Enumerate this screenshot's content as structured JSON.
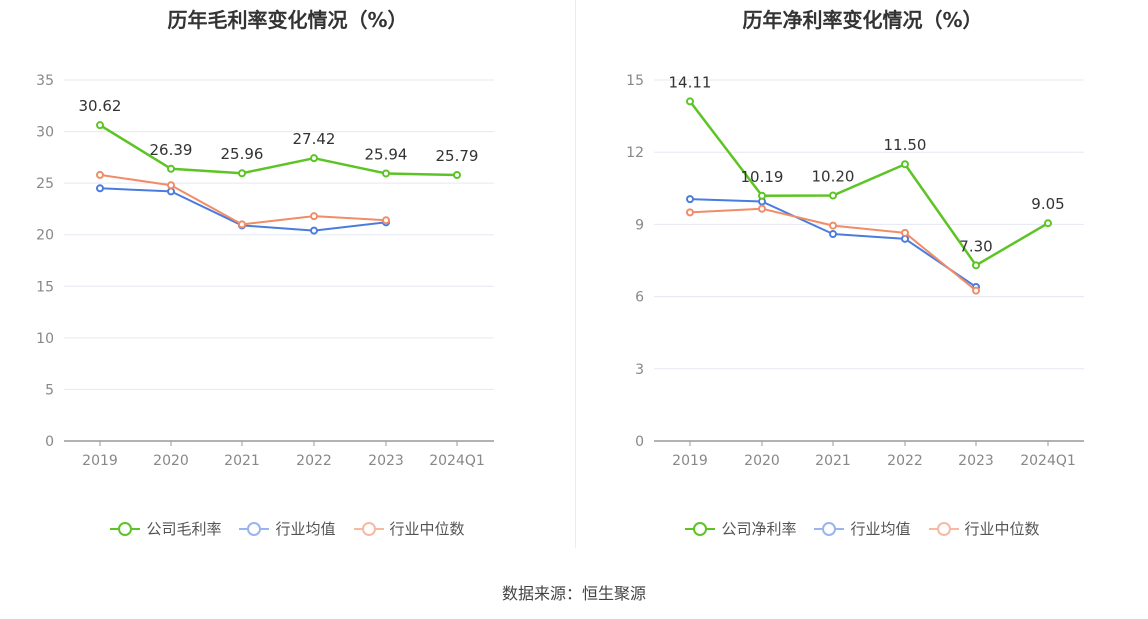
{
  "footer": {
    "source_text": "数据来源：恒生聚源"
  },
  "colors": {
    "company": "#5cc424",
    "avg": "#4a7ce0",
    "median": "#f08c66",
    "grid": "#e6e8f2",
    "axis": "#999999"
  },
  "chart_data": [
    {
      "type": "line",
      "title": "历年毛利率变化情况（%）",
      "categories": [
        "2019",
        "2020",
        "2021",
        "2022",
        "2023",
        "2024Q1"
      ],
      "ylim": [
        0,
        35
      ],
      "yticks": [
        0,
        5,
        10,
        15,
        20,
        25,
        30,
        35
      ],
      "grid": true,
      "legend_position": "bottom",
      "series": [
        {
          "name": "公司毛利率",
          "key": "company",
          "values": [
            30.62,
            26.39,
            25.96,
            27.42,
            25.94,
            25.79
          ],
          "labels": [
            "30.62",
            "26.39",
            "25.96",
            "27.42",
            "25.94",
            "25.79"
          ]
        },
        {
          "name": "行业均值",
          "key": "avg",
          "values": [
            24.5,
            24.2,
            20.9,
            20.4,
            21.2,
            null
          ]
        },
        {
          "name": "行业中位数",
          "key": "median",
          "values": [
            25.8,
            24.8,
            21.0,
            21.8,
            21.4,
            null
          ]
        }
      ]
    },
    {
      "type": "line",
      "title": "历年净利率变化情况（%）",
      "categories": [
        "2019",
        "2020",
        "2021",
        "2022",
        "2023",
        "2024Q1"
      ],
      "ylim": [
        0,
        15
      ],
      "yticks": [
        0,
        3,
        6,
        9,
        12,
        15
      ],
      "grid": true,
      "legend_position": "bottom",
      "series": [
        {
          "name": "公司净利率",
          "key": "company",
          "values": [
            14.11,
            10.19,
            10.2,
            11.5,
            7.3,
            9.05
          ],
          "labels": [
            "14.11",
            "10.19",
            "10.20",
            "11.50",
            "7.30",
            "9.05"
          ]
        },
        {
          "name": "行业均值",
          "key": "avg",
          "values": [
            10.05,
            9.95,
            8.6,
            8.4,
            6.4,
            null
          ]
        },
        {
          "name": "行业中位数",
          "key": "median",
          "values": [
            9.5,
            9.65,
            8.95,
            8.65,
            6.25,
            null
          ]
        }
      ]
    }
  ]
}
